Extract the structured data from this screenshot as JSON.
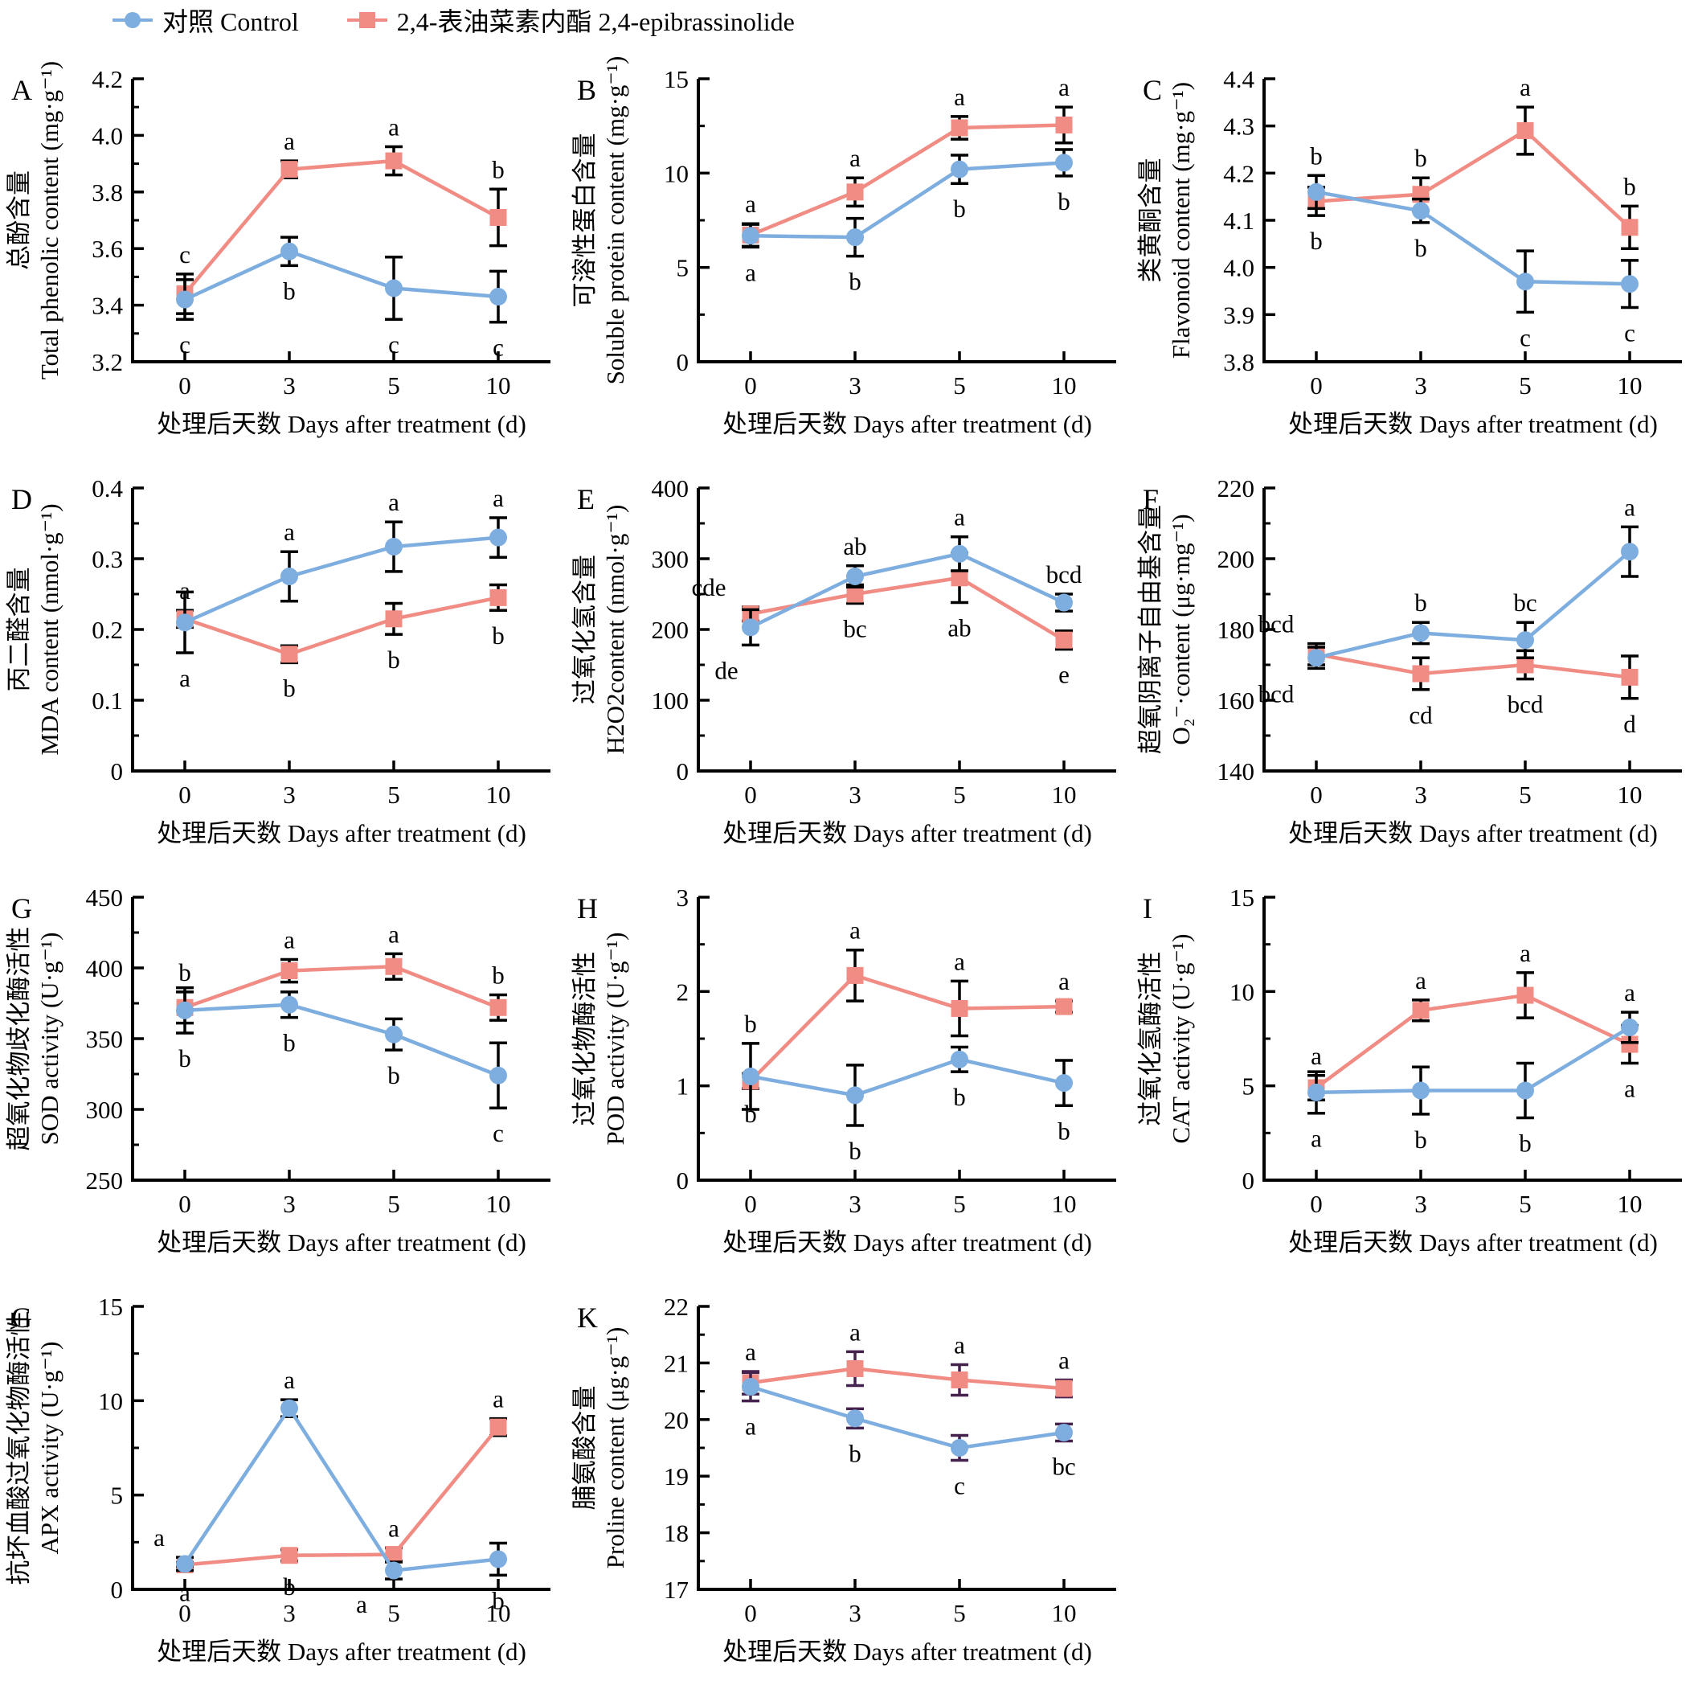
{
  "legend": {
    "control_label": "对照 Control",
    "ebr_label": "2,4-表油菜素内酯 2,4-epibrassinolide"
  },
  "colors": {
    "control": "#7EAEDF",
    "ebr": "#F08C84",
    "error_bar": "#000000",
    "axis": "#000000",
    "text": "#000000"
  },
  "x_axis": {
    "label": "处理后天数 Days after treatment (d)",
    "tick_labels": [
      "0",
      "3",
      "5",
      "10"
    ]
  },
  "chart_data": [
    {
      "type": "line",
      "panel_letter": "A",
      "ylabel_cn": "总酚含量",
      "ylabel_en": "Total phenolic content (mg·g⁻¹)",
      "ylim": [
        3.2,
        4.2
      ],
      "yticks": [
        3.2,
        3.4,
        3.6,
        3.8,
        4.0,
        4.2
      ],
      "ytick_labels": [
        "3.2",
        "3.4",
        "3.6",
        "3.8",
        "4.0",
        "4.2"
      ],
      "yminor": true,
      "series": [
        {
          "key": "control",
          "name": "Control",
          "values": [
            3.42,
            3.59,
            3.46,
            3.43
          ],
          "errors": [
            0.07,
            0.05,
            0.11,
            0.09
          ],
          "letters": [
            "c",
            "b",
            "c",
            "c"
          ]
        },
        {
          "key": "ebr",
          "name": "2,4-epibrassinolide",
          "values": [
            3.44,
            3.88,
            3.91,
            3.71
          ],
          "errors": [
            0.07,
            0.03,
            0.05,
            0.1
          ],
          "letters": [
            "c",
            "a",
            "a",
            "b"
          ]
        }
      ]
    },
    {
      "type": "line",
      "panel_letter": "B",
      "ylabel_cn": "可溶性蛋白含量",
      "ylabel_en": "Soluble protein content (mg·g⁻¹)",
      "ylim": [
        0,
        15
      ],
      "yticks": [
        0,
        5,
        10,
        15
      ],
      "ytick_labels": [
        "0",
        "5",
        "10",
        "15"
      ],
      "yminor": true,
      "series": [
        {
          "key": "control",
          "name": "Control",
          "values": [
            6.68,
            6.6,
            10.2,
            10.55
          ],
          "errors": [
            0.6,
            1.0,
            0.75,
            0.7
          ],
          "letters": [
            "a",
            "b",
            "b",
            "b"
          ]
        },
        {
          "key": "ebr",
          "name": "2,4-epibrassinolide",
          "values": [
            6.72,
            9.0,
            12.4,
            12.55
          ],
          "errors": [
            0.6,
            0.75,
            0.6,
            0.95
          ],
          "letters": [
            "a",
            "a",
            "a",
            "a"
          ]
        }
      ]
    },
    {
      "type": "line",
      "panel_letter": "C",
      "ylabel_cn": "类黄酮含量",
      "ylabel_en": "Flavonoid content (mg·g⁻¹)",
      "ylim": [
        3.8,
        4.4
      ],
      "yticks": [
        3.8,
        3.9,
        4.0,
        4.1,
        4.2,
        4.3,
        4.4
      ],
      "ytick_labels": [
        "3.8",
        "3.9",
        "4.0",
        "4.1",
        "4.2",
        "4.3",
        "4.4"
      ],
      "yminor": false,
      "series": [
        {
          "key": "control",
          "name": "Control",
          "values": [
            4.16,
            4.12,
            3.97,
            3.965
          ],
          "errors": [
            0.035,
            0.025,
            0.065,
            0.05
          ],
          "letters": [
            "b",
            "b",
            "c",
            "c"
          ]
        },
        {
          "key": "ebr",
          "name": "2,4-epibrassinolide",
          "values": [
            4.14,
            4.155,
            4.29,
            4.085
          ],
          "errors": [
            0.03,
            0.035,
            0.05,
            0.045
          ],
          "letters": [
            "b",
            "b",
            "a",
            "b"
          ]
        }
      ]
    },
    {
      "type": "line",
      "panel_letter": "D",
      "ylabel_cn": "丙二醛含量",
      "ylabel_en": "MDA content (nmol·g⁻¹)",
      "ylim": [
        0,
        0.4
      ],
      "yticks": [
        0,
        0.1,
        0.2,
        0.3,
        0.4
      ],
      "ytick_labels": [
        "0",
        "0.1",
        "0.2",
        "0.3",
        "0.4"
      ],
      "yminor": true,
      "series": [
        {
          "key": "control",
          "name": "Control",
          "values": [
            0.21,
            0.275,
            0.317,
            0.33
          ],
          "errors": [
            0.043,
            0.035,
            0.035,
            0.028
          ],
          "letters": [
            "a",
            "a",
            "a",
            "a"
          ]
        },
        {
          "key": "ebr",
          "name": "2,4-epibrassinolide",
          "values": [
            0.215,
            0.165,
            0.215,
            0.245
          ],
          "errors": [
            0.012,
            0.012,
            0.022,
            0.018
          ],
          "letters": [
            "a",
            "b",
            "b",
            "b"
          ]
        }
      ]
    },
    {
      "type": "line",
      "panel_letter": "E",
      "ylabel_cn": "过氧化氢含量",
      "ylabel_en": "H2O2content (nmol·g⁻¹)",
      "ylim": [
        0,
        400
      ],
      "yticks": [
        0,
        100,
        200,
        300,
        400
      ],
      "ytick_labels": [
        "0",
        "100",
        "200",
        "300",
        "400"
      ],
      "yminor": true,
      "series": [
        {
          "key": "control",
          "name": "Control",
          "values": [
            203,
            275,
            307,
            238
          ],
          "errors": [
            25,
            15,
            24,
            12
          ],
          "letters": [
            "de",
            "ab",
            "a",
            "bcd"
          ],
          "letter_dx": [
            -30,
            0,
            0,
            0
          ]
        },
        {
          "key": "ebr",
          "name": "2,4-epibrassinolide",
          "values": [
            222,
            250,
            273,
            185
          ],
          "errors": [
            10,
            13,
            35,
            13
          ],
          "letters": [
            "cde",
            "bc",
            "ab",
            "e"
          ],
          "letter_dx": [
            -52,
            0,
            0,
            0
          ]
        }
      ]
    },
    {
      "type": "line",
      "panel_letter": "F",
      "ylabel_cn": "超氧阴离子自由基含量",
      "ylabel_en": "O₂⁻·content (μg·mg⁻¹)",
      "ylim": [
        140,
        220
      ],
      "yticks": [
        140,
        160,
        180,
        200,
        220
      ],
      "ytick_labels": [
        "140",
        "160",
        "180",
        "200",
        "220"
      ],
      "yminor": true,
      "series": [
        {
          "key": "control",
          "name": "Control",
          "values": [
            172,
            179,
            177,
            202
          ],
          "errors": [
            3,
            3,
            5,
            7
          ],
          "letters": [
            "bcd",
            "b",
            "bc",
            "a"
          ],
          "letter_dx": [
            -50,
            0,
            0,
            0
          ]
        },
        {
          "key": "ebr",
          "name": "2,4-epibrassinolide",
          "values": [
            173,
            167.5,
            170,
            166.5
          ],
          "errors": [
            3,
            4.5,
            4,
            6
          ],
          "letters": [
            "bcd",
            "cd",
            "bcd",
            "d"
          ],
          "letter_dx": [
            -50,
            0,
            0,
            0
          ]
        }
      ]
    },
    {
      "type": "line",
      "panel_letter": "G",
      "ylabel_cn": "超氧化物歧化酶活性",
      "ylabel_en": "SOD activity (U·g⁻¹)",
      "ylim": [
        250,
        450
      ],
      "yticks": [
        250,
        300,
        350,
        400,
        450
      ],
      "ytick_labels": [
        "250",
        "300",
        "350",
        "400",
        "450"
      ],
      "yminor": true,
      "series": [
        {
          "key": "control",
          "name": "Control",
          "values": [
            370,
            374,
            353,
            324
          ],
          "errors": [
            16,
            9,
            11,
            23
          ],
          "letters": [
            "b",
            "b",
            "b",
            "c"
          ]
        },
        {
          "key": "ebr",
          "name": "2,4-epibrassinolide",
          "values": [
            372,
            398,
            401,
            372
          ],
          "errors": [
            11,
            8,
            9,
            9
          ],
          "letters": [
            "b",
            "a",
            "a",
            "b"
          ]
        }
      ]
    },
    {
      "type": "line",
      "panel_letter": "H",
      "ylabel_cn": "过氧化物酶活性",
      "ylabel_en": "POD activity (U·g⁻¹)",
      "ylim": [
        0,
        3
      ],
      "yticks": [
        0,
        1,
        2,
        3
      ],
      "ytick_labels": [
        "0",
        "1",
        "2",
        "3"
      ],
      "yminor": true,
      "series": [
        {
          "key": "control",
          "name": "Control",
          "values": [
            1.1,
            0.9,
            1.28,
            1.03
          ],
          "errors": [
            0.35,
            0.32,
            0.13,
            0.24
          ],
          "letters": [
            "b",
            "b",
            "b",
            "b"
          ]
        },
        {
          "key": "ebr",
          "name": "2,4-epibrassinolide",
          "values": [
            1.05,
            2.17,
            1.82,
            1.84
          ],
          "errors": [
            0.08,
            0.27,
            0.29,
            0.06
          ],
          "letters": [
            "b",
            "a",
            "a",
            "a"
          ]
        }
      ]
    },
    {
      "type": "line",
      "panel_letter": "I",
      "ylabel_cn": "过氧化氢酶活性",
      "ylabel_en": "CAT activity (U·g⁻¹)",
      "ylim": [
        0,
        15
      ],
      "yticks": [
        0,
        5,
        10,
        15
      ],
      "ytick_labels": [
        "0",
        "5",
        "10",
        "15"
      ],
      "yminor": true,
      "series": [
        {
          "key": "control",
          "name": "Control",
          "values": [
            4.65,
            4.75,
            4.75,
            8.1
          ],
          "errors": [
            1.1,
            1.25,
            1.45,
            0.8
          ],
          "letters": [
            "a",
            "b",
            "b",
            "a"
          ]
        },
        {
          "key": "ebr",
          "name": "2,4-epibrassinolide",
          "values": [
            4.9,
            9.0,
            9.8,
            7.2
          ],
          "errors": [
            0.65,
            0.55,
            1.2,
            1.0
          ],
          "letters": [
            "a",
            "a",
            "a",
            "a"
          ]
        }
      ]
    },
    {
      "type": "line",
      "panel_letter": "G",
      "ylabel_cn": "抗坏血酸过氧化物酶活性",
      "ylabel_en": "APX activity (U·g⁻¹)",
      "ylim": [
        0,
        15
      ],
      "yticks": [
        0,
        5,
        10,
        15
      ],
      "ytick_labels": [
        "0",
        "5",
        "10",
        "15"
      ],
      "yminor": true,
      "series": [
        {
          "key": "control",
          "name": "Control",
          "values": [
            1.35,
            9.6,
            1.0,
            1.6
          ],
          "errors": [
            0.35,
            0.45,
            0.45,
            0.85
          ],
          "letters": [
            "a",
            "a",
            "a",
            "b"
          ],
          "letter_dx": [
            -32,
            0,
            -40,
            0
          ]
        },
        {
          "key": "ebr",
          "name": "2,4-epibrassinolide",
          "values": [
            1.3,
            1.8,
            1.85,
            8.6
          ],
          "errors": [
            0.12,
            0.3,
            0.35,
            0.45
          ],
          "letters": [
            "a",
            "b",
            "a",
            "a"
          ]
        }
      ]
    },
    {
      "type": "line",
      "panel_letter": "K",
      "ylabel_cn": "脯氨酸含量",
      "ylabel_en": "Proline content (μg·g⁻¹)",
      "ylim": [
        17,
        22
      ],
      "yticks": [
        17,
        18,
        19,
        20,
        21,
        22
      ],
      "ytick_labels": [
        "17",
        "18",
        "19",
        "20",
        "21",
        "22"
      ],
      "yminor": true,
      "error_color": "#45214D",
      "series": [
        {
          "key": "control",
          "name": "Control",
          "values": [
            20.58,
            20.02,
            19.5,
            19.77
          ],
          "errors": [
            0.25,
            0.17,
            0.22,
            0.15
          ],
          "letters": [
            "a",
            "b",
            "c",
            "bc"
          ]
        },
        {
          "key": "ebr",
          "name": "2,4-epibrassinolide",
          "values": [
            20.65,
            20.9,
            20.7,
            20.55
          ],
          "errors": [
            0.2,
            0.3,
            0.27,
            0.15
          ],
          "letters": [
            "a",
            "a",
            "a",
            "a"
          ]
        }
      ]
    }
  ]
}
